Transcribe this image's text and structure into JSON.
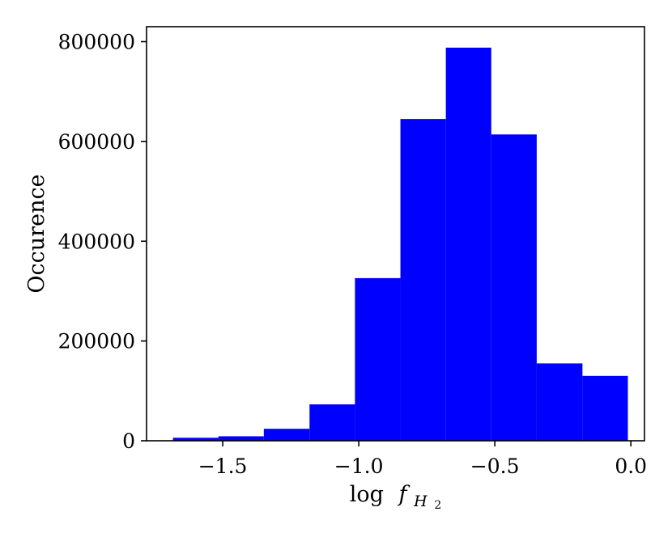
{
  "chart_data": {
    "type": "bar",
    "title": "",
    "xlabel": {
      "prefix": "log",
      "symbol": "f",
      "subscript": "H",
      "subsubscript": "2"
    },
    "ylabel": "Occurence",
    "xlim": [
      -1.78,
      0.05
    ],
    "ylim": [
      0,
      830000
    ],
    "xticks": [
      -1.5,
      -1.0,
      -0.5,
      0.0
    ],
    "xtick_labels": [
      "−1.5",
      "−1.0",
      "−0.5",
      "0.0"
    ],
    "yticks": [
      0,
      200000,
      400000,
      600000,
      800000
    ],
    "ytick_labels": [
      "0",
      "200000",
      "400000",
      "600000",
      "800000"
    ],
    "bar_color": "#0000ff",
    "bins": [
      {
        "x0": -1.683,
        "x1": -1.516,
        "value": 6000
      },
      {
        "x0": -1.516,
        "x1": -1.349,
        "value": 9000
      },
      {
        "x0": -1.349,
        "x1": -1.181,
        "value": 24000
      },
      {
        "x0": -1.181,
        "x1": -1.014,
        "value": 73000
      },
      {
        "x0": -1.014,
        "x1": -0.847,
        "value": 326000
      },
      {
        "x0": -0.847,
        "x1": -0.68,
        "value": 645000
      },
      {
        "x0": -0.68,
        "x1": -0.513,
        "value": 788000
      },
      {
        "x0": -0.513,
        "x1": -0.346,
        "value": 614000
      },
      {
        "x0": -0.346,
        "x1": -0.178,
        "value": 155000
      },
      {
        "x0": -0.178,
        "x1": -0.011,
        "value": 130000
      }
    ],
    "grid": false,
    "legend": "none"
  }
}
